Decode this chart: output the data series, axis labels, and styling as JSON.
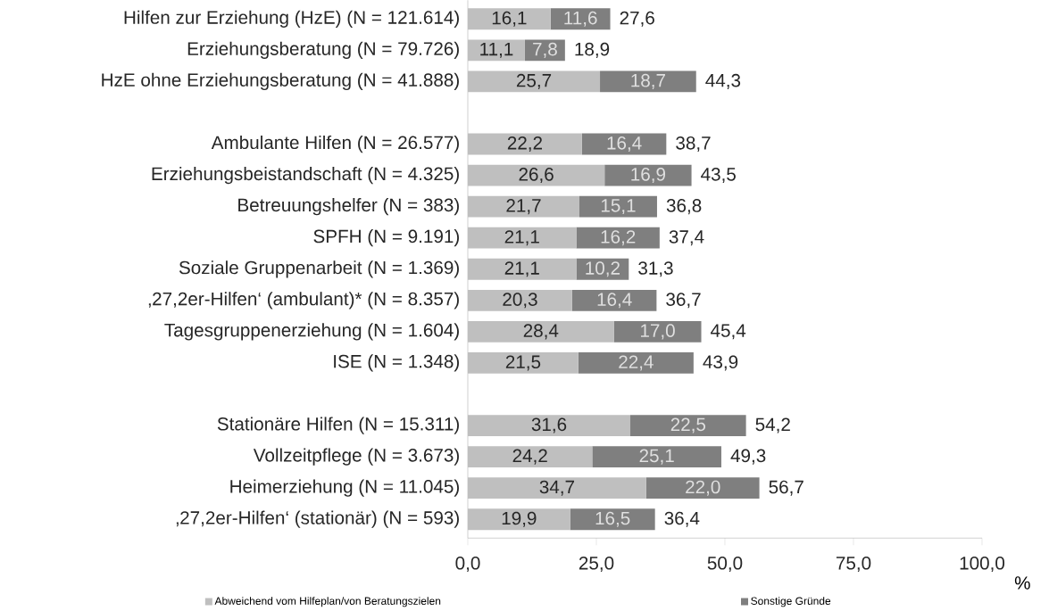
{
  "chart_data": {
    "type": "bar",
    "orientation": "horizontal",
    "stacked": true,
    "categories": [
      "Hilfen zur Erziehung (HzE) (N = 121.614)",
      "Erziehungsberatung (N = 79.726)",
      "HzE ohne Erziehungsberatung (N = 41.888)",
      null,
      "Ambulante Hilfen (N = 26.577)",
      "Erziehungsbeistandschaft (N = 4.325)",
      "Betreuungshelfer (N = 383)",
      "SPFH (N = 9.191)",
      "Soziale Gruppenarbeit (N = 1.369)",
      "‚27,2er-Hilfen‘ (ambulant)* (N = 8.357)",
      "Tagesgruppenerziehung (N = 1.604)",
      "ISE (N = 1.348)",
      null,
      "Stationäre Hilfen (N = 15.311)",
      "Vollzeitpflege (N = 3.673)",
      "Heimerziehung (N = 11.045)",
      "‚27,2er-Hilfen‘ (stationär) (N = 593)"
    ],
    "series": [
      {
        "name": "Abweichend vom Hilfeplan/von Beratungszielen",
        "color": "#bfbfbf",
        "values": [
          16.1,
          11.1,
          25.7,
          null,
          22.2,
          26.6,
          21.7,
          21.1,
          21.1,
          20.3,
          28.4,
          21.5,
          null,
          31.6,
          24.2,
          34.7,
          19.9
        ],
        "value_labels": [
          "16,1",
          "11,1",
          "25,7",
          null,
          "22,2",
          "26,6",
          "21,7",
          "21,1",
          "21,1",
          "20,3",
          "28,4",
          "21,5",
          null,
          "31,6",
          "24,2",
          "34,7",
          "19,9"
        ]
      },
      {
        "name": "Sonstige Gründe",
        "color": "#7f7f7f",
        "values": [
          11.6,
          7.8,
          18.7,
          null,
          16.4,
          16.9,
          15.1,
          16.2,
          10.2,
          16.4,
          17.0,
          22.4,
          null,
          22.5,
          25.1,
          22.0,
          16.5
        ],
        "value_labels": [
          "11,6",
          "7,8",
          "18,7",
          null,
          "16,4",
          "16,9",
          "15,1",
          "16,2",
          "10,2",
          "16,4",
          "17,0",
          "22,4",
          null,
          "22,5",
          "25,1",
          "22,0",
          "16,5"
        ]
      }
    ],
    "totals": [
      "27,6",
      "18,9",
      "44,3",
      null,
      "38,7",
      "43,5",
      "36,8",
      "37,4",
      "31,3",
      "36,7",
      "45,4",
      "43,9",
      null,
      "54,2",
      "49,3",
      "56,7",
      "36,4"
    ],
    "xlim": [
      0,
      100
    ],
    "xticks": [
      {
        "value": 0,
        "label": "0,0"
      },
      {
        "value": 25,
        "label": "25,0"
      },
      {
        "value": 50,
        "label": "50,0"
      },
      {
        "value": 75,
        "label": "75,0"
      },
      {
        "value": 100,
        "label": "100,0"
      }
    ],
    "xlabel": "%",
    "grid": false,
    "legend": "bottom"
  }
}
